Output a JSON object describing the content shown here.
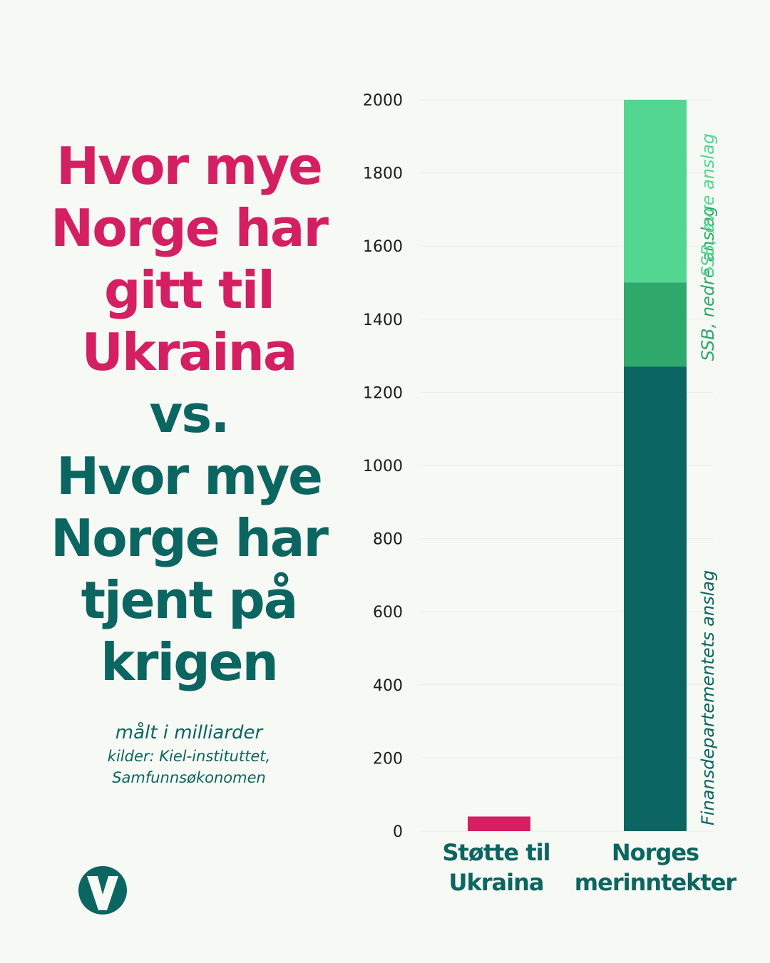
{
  "headline": {
    "line1": "Hvor mye",
    "line2": "Norge har",
    "line3": "gitt til",
    "line4": "Ukraina",
    "line5": "vs.",
    "line6": "Hvor mye",
    "line7": "Norge har",
    "line8": "tjent på",
    "line9": "krigen"
  },
  "subtitle": {
    "unit": "målt i milliarder",
    "source1": "kilder: Kiel-instituttet,",
    "source2": "Samfunnsøkonomen"
  },
  "colors": {
    "pink": "#d41f62",
    "teal": "#0b6561",
    "green_mid": "#2ea86b",
    "green_light": "#52d691",
    "background": "#f7f9f4"
  },
  "logo": {
    "icon": "v-logo-icon"
  },
  "chart_data": {
    "type": "bar",
    "stacked": true,
    "ylim": [
      0,
      2000
    ],
    "yticks": [
      0,
      200,
      400,
      600,
      800,
      1000,
      1200,
      1400,
      1600,
      1800,
      2000
    ],
    "categories": [
      {
        "label_lines": [
          "Støtte til",
          "Ukraina"
        ]
      },
      {
        "label_lines": [
          "Norges",
          "merinntekter"
        ]
      }
    ],
    "bars": [
      {
        "segments": [
          {
            "from": 0,
            "to": 40,
            "color": "#d41f62",
            "label": ""
          }
        ]
      },
      {
        "segments": [
          {
            "from": 0,
            "to": 1270,
            "color": "#0b6561",
            "label": "Finansdepartementets anslag",
            "label_color": "#0b6561"
          },
          {
            "from": 1270,
            "to": 1500,
            "color": "#2ea86b",
            "label": "SSB, nedre anslag",
            "label_color": "#2ea86b"
          },
          {
            "from": 1500,
            "to": 2000,
            "color": "#52d691",
            "label": "SSB, øvre anslag",
            "label_color": "#52d691"
          }
        ]
      }
    ],
    "grid": true,
    "legend": "none"
  }
}
